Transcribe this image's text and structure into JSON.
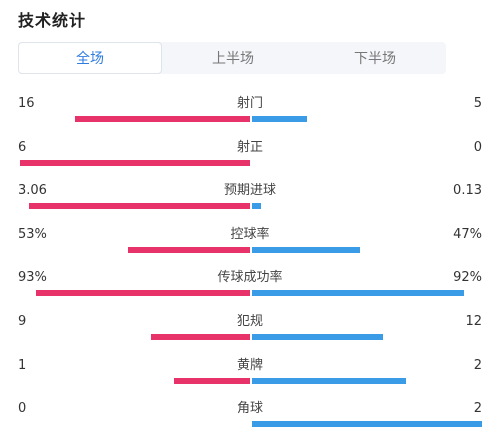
{
  "page_title": "技术统计",
  "tabs": [
    {
      "label": "全场",
      "active": true
    },
    {
      "label": "上半场",
      "active": false
    },
    {
      "label": "下半场",
      "active": false
    }
  ],
  "colors": {
    "home": "#e8336a",
    "away": "#3a9be6",
    "active_tab_text": "#2f7ce0"
  },
  "stats": [
    {
      "label": "射门",
      "home": "16",
      "away": "5",
      "home_share": 0.76,
      "away_share": 0.24
    },
    {
      "label": "射正",
      "home": "6",
      "away": "0",
      "home_share": 1.0,
      "away_share": 0.0
    },
    {
      "label": "预期进球",
      "home": "3.06",
      "away": "0.13",
      "home_share": 0.96,
      "away_share": 0.04
    },
    {
      "label": "控球率",
      "home": "53%",
      "away": "47%",
      "home_share": 0.53,
      "away_share": 0.47
    },
    {
      "label": "传球成功率",
      "home": "93%",
      "away": "92%",
      "home_share": 0.93,
      "away_share": 0.92
    },
    {
      "label": "犯规",
      "home": "9",
      "away": "12",
      "home_share": 0.43,
      "away_share": 0.57
    },
    {
      "label": "黄牌",
      "home": "1",
      "away": "2",
      "home_share": 0.33,
      "away_share": 0.67
    },
    {
      "label": "角球",
      "home": "0",
      "away": "2",
      "home_share": 0.0,
      "away_share": 1.0
    }
  ]
}
